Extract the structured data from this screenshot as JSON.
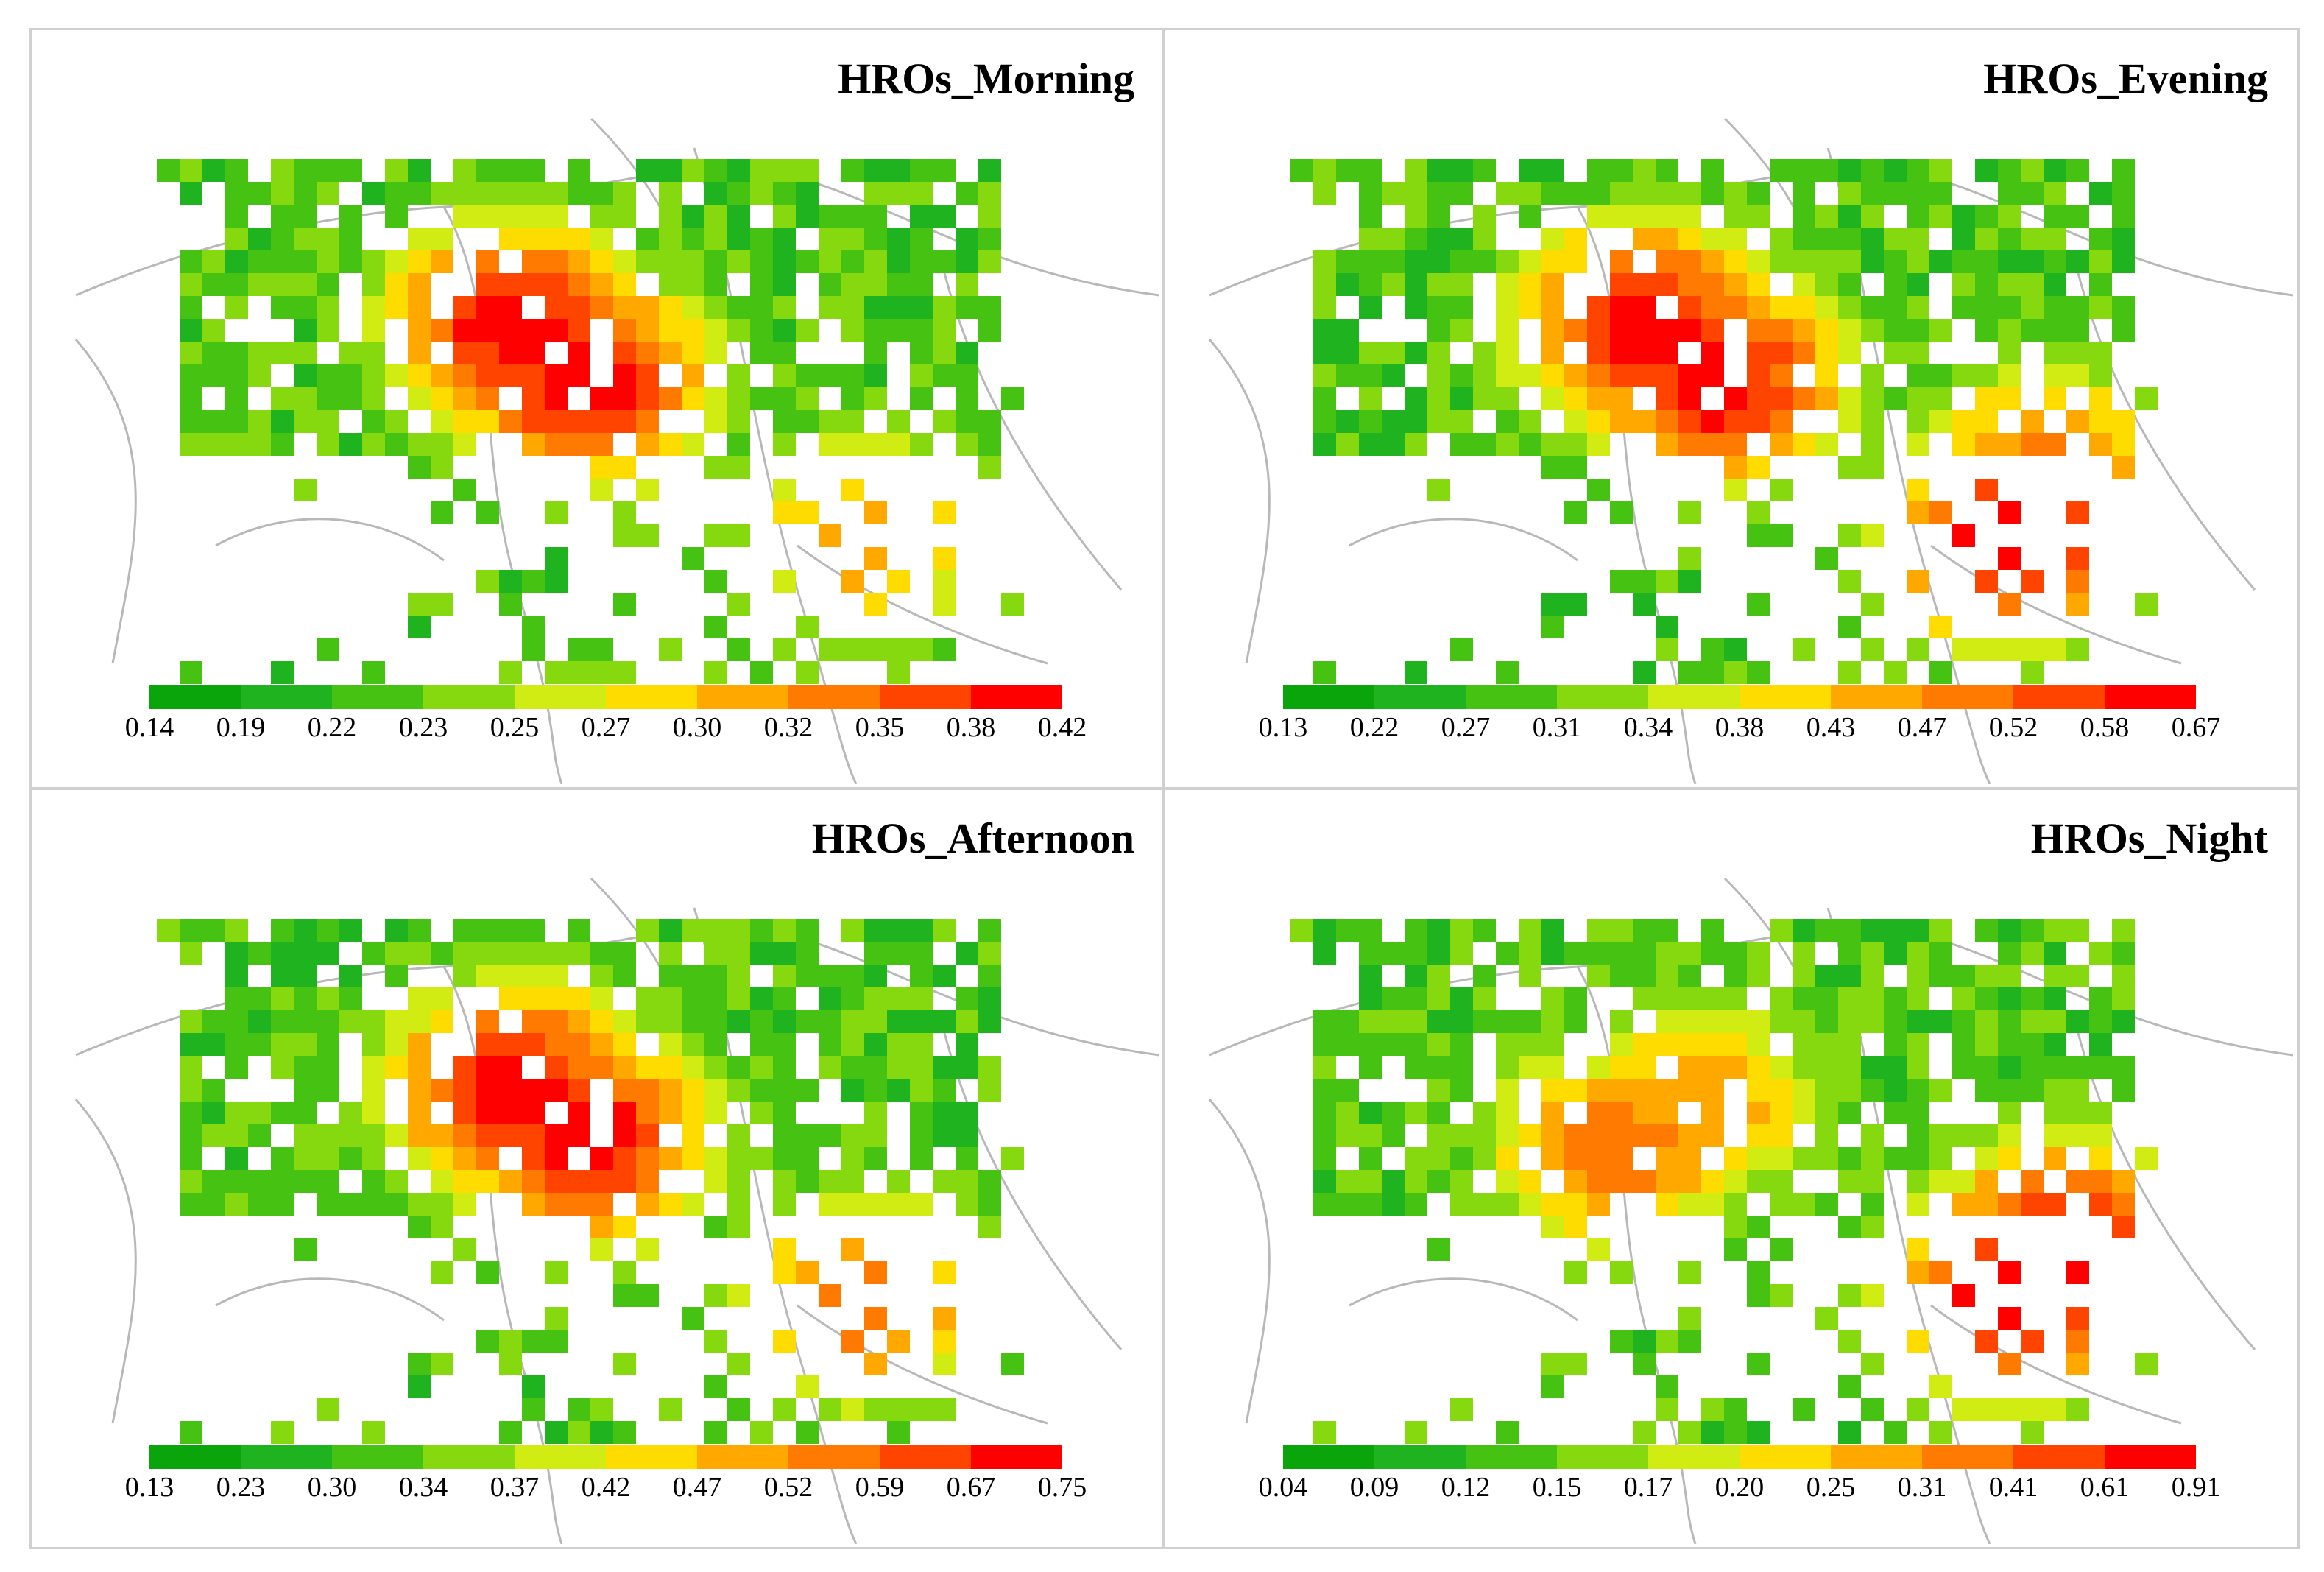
{
  "figure": {
    "colors": [
      "#0aa50a",
      "#1fb31f",
      "#46c213",
      "#86d80f",
      "#d1ec12",
      "#ffdc00",
      "#ffa800",
      "#ff7a00",
      "#ff4400",
      "#ff0000"
    ],
    "boundary_color": "#b8b8b8",
    "panels": [
      {
        "title": "HROs_Morning",
        "ticks": [
          "0.14",
          "0.19",
          "0.22",
          "0.23",
          "0.25",
          "0.27",
          "0.30",
          "0.32",
          "0.35",
          "0.38",
          "0.42"
        ],
        "hot_zones": [
          {
            "lon": 0.4,
            "lat": 0.3,
            "level": 9
          },
          {
            "lon": 0.48,
            "lat": 0.4,
            "level": 9
          },
          {
            "lon": 0.8,
            "lat": 0.7,
            "level": 6
          }
        ]
      },
      {
        "title": "HROs_Evening",
        "ticks": [
          "0.13",
          "0.22",
          "0.27",
          "0.31",
          "0.34",
          "0.38",
          "0.43",
          "0.47",
          "0.52",
          "0.58",
          "0.67"
        ],
        "hot_zones": [
          {
            "lon": 0.4,
            "lat": 0.3,
            "level": 9
          },
          {
            "lon": 0.48,
            "lat": 0.4,
            "level": 9
          },
          {
            "lon": 0.82,
            "lat": 0.7,
            "level": 9
          },
          {
            "lon": 0.86,
            "lat": 0.58,
            "level": 7
          }
        ]
      },
      {
        "title": "HROs_Afternoon",
        "ticks": [
          "0.13",
          "0.23",
          "0.30",
          "0.34",
          "0.37",
          "0.42",
          "0.47",
          "0.52",
          "0.59",
          "0.67",
          "0.75"
        ],
        "hot_zones": [
          {
            "lon": 0.4,
            "lat": 0.3,
            "level": 9
          },
          {
            "lon": 0.48,
            "lat": 0.4,
            "level": 9
          },
          {
            "lon": 0.8,
            "lat": 0.7,
            "level": 7
          }
        ]
      },
      {
        "title": "HROs_Night",
        "ticks": [
          "0.04",
          "0.09",
          "0.12",
          "0.15",
          "0.17",
          "0.20",
          "0.25",
          "0.31",
          "0.41",
          "0.61",
          "0.91"
        ],
        "hot_zones": [
          {
            "lon": 0.36,
            "lat": 0.42,
            "level": 7
          },
          {
            "lon": 0.46,
            "lat": 0.32,
            "level": 6
          },
          {
            "lon": 0.82,
            "lat": 0.7,
            "level": 9
          },
          {
            "lon": 0.88,
            "lat": 0.6,
            "level": 9
          }
        ]
      }
    ]
  }
}
